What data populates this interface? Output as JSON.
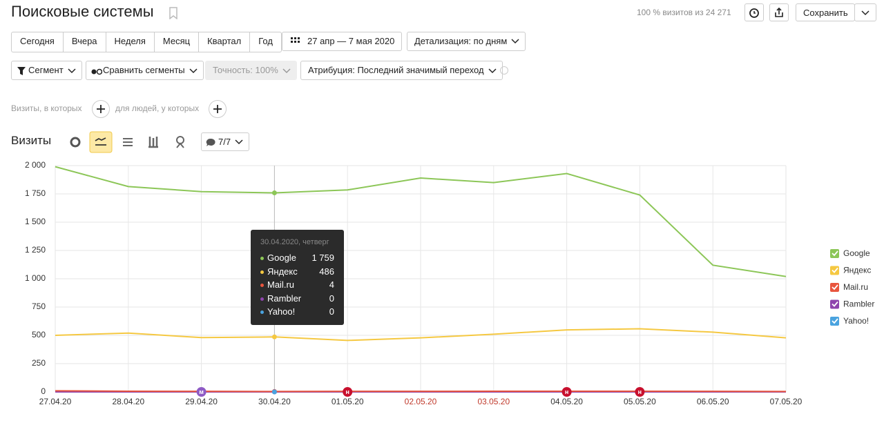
{
  "header": {
    "title": "Поисковые системы",
    "visits_note": "100 % визитов из 24 271",
    "save": "Сохранить"
  },
  "periods": [
    "Сегодня",
    "Вчера",
    "Неделя",
    "Месяц",
    "Квартал",
    "Год"
  ],
  "date_range": "27 апр — 7 мая 2020",
  "detail": "Детализация: по дням",
  "segment": "Сегмент",
  "compare": "Сравнить сегменты",
  "accuracy": "Точность: 100%",
  "attribution": "Атрибуция: Последний значимый переход",
  "filters": {
    "visits": "Визиты, в которых",
    "people": "для людей, у которых"
  },
  "chart_header": {
    "title": "Визиты",
    "series_count": "7/7"
  },
  "tooltip": {
    "date": "30.04.2020, четверг",
    "rows": [
      {
        "name": "Google",
        "value": "1 759"
      },
      {
        "name": "Яндекс",
        "value": "486"
      },
      {
        "name": "Mail.ru",
        "value": "4"
      },
      {
        "name": "Rambler",
        "value": "0"
      },
      {
        "name": "Yahoo!",
        "value": "0"
      }
    ]
  },
  "chart_data": {
    "type": "line",
    "categories": [
      "27.04.20",
      "28.04.20",
      "29.04.20",
      "30.04.20",
      "01.05.20",
      "02.05.20",
      "03.05.20",
      "04.05.20",
      "05.05.20",
      "06.05.20",
      "07.05.20"
    ],
    "category_colors": [
      "#333",
      "#333",
      "#333",
      "#333",
      "#333",
      "#c0392b",
      "#c0392b",
      "#333",
      "#333",
      "#333",
      "#333"
    ],
    "series": [
      {
        "name": "Google",
        "color": "#8cc657",
        "values": [
          1990,
          1815,
          1770,
          1759,
          1785,
          1890,
          1850,
          1930,
          1740,
          1120,
          1020
        ]
      },
      {
        "name": "Яндекс",
        "color": "#f5c841",
        "values": [
          500,
          520,
          480,
          486,
          455,
          478,
          510,
          548,
          558,
          528,
          478
        ]
      },
      {
        "name": "Mail.ru",
        "color": "#e8553e",
        "values": [
          10,
          6,
          5,
          4,
          5,
          5,
          6,
          6,
          6,
          5,
          4
        ]
      },
      {
        "name": "Rambler",
        "color": "#8e44ad",
        "values": [
          0,
          0,
          0,
          0,
          0,
          0,
          0,
          0,
          0,
          0,
          0
        ]
      },
      {
        "name": "Yahoo!",
        "color": "#4aa3df",
        "values": [
          0,
          0,
          0,
          0,
          0,
          0,
          0,
          0,
          0,
          0,
          0
        ]
      }
    ],
    "annotations": [
      {
        "x": "29.04.20",
        "label": "м",
        "color": "#8e5bc5"
      },
      {
        "x": "01.05.20",
        "label": "н",
        "color": "#c8102e"
      },
      {
        "x": "04.05.20",
        "label": "н",
        "color": "#c8102e"
      },
      {
        "x": "05.05.20",
        "label": "н",
        "color": "#c8102e"
      }
    ],
    "crosshair": "30.04.20",
    "ylim": [
      0,
      2000
    ],
    "yticks": [
      0,
      250,
      500,
      750,
      {
        "value": 1000,
        "label": "1 000"
      },
      {
        "value": 1250,
        "label": "1 250"
      },
      {
        "value": 1500,
        "label": "1 500"
      },
      {
        "value": 1750,
        "label": "1 750"
      },
      {
        "value": 2000,
        "label": "2 000"
      }
    ],
    "grid": true
  }
}
